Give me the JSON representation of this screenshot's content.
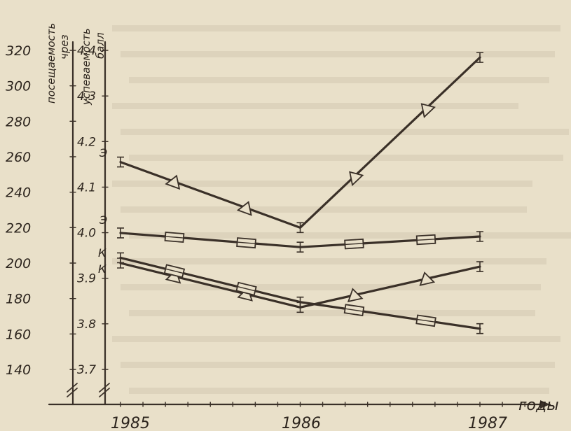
{
  "chart_data": {
    "type": "line",
    "x_title": "годы",
    "x_tick_labels": [
      "1985",
      "1986",
      "1987"
    ],
    "x_range": [
      1985,
      1987
    ],
    "left_axis": {
      "title_lines": [
        "посещаемость",
        "чрез"
      ],
      "ticks": [
        140,
        160,
        180,
        200,
        220,
        240,
        260,
        280,
        300,
        320
      ],
      "range": [
        140,
        320
      ]
    },
    "right_axis": {
      "title_lines": [
        "успеваемость",
        "балл"
      ],
      "ticks": [
        "3.7",
        "3.8",
        "3.9",
        "4.0",
        "4.1",
        "4.2",
        "4.3",
        "4.4"
      ],
      "range": [
        3.7,
        4.4
      ]
    },
    "series": [
      {
        "label": "Э",
        "marker": "triangle",
        "axis": "left",
        "points": [
          [
            1985,
            257
          ],
          [
            1986,
            220
          ],
          [
            1987,
            316
          ]
        ]
      },
      {
        "label": "Э",
        "marker": "square",
        "axis": "left",
        "points": [
          [
            1985,
            217
          ],
          [
            1986,
            209
          ],
          [
            1987,
            215
          ]
        ]
      },
      {
        "label": "К",
        "marker": "triangle",
        "axis": "left",
        "points": [
          [
            1985,
            200
          ],
          [
            1986,
            175
          ],
          [
            1987,
            198
          ]
        ]
      },
      {
        "label": "К",
        "marker": "square",
        "axis": "left",
        "points": [
          [
            1985,
            203
          ],
          [
            1986,
            178
          ],
          [
            1987,
            163
          ]
        ]
      }
    ],
    "grid": false,
    "legend": "none"
  }
}
